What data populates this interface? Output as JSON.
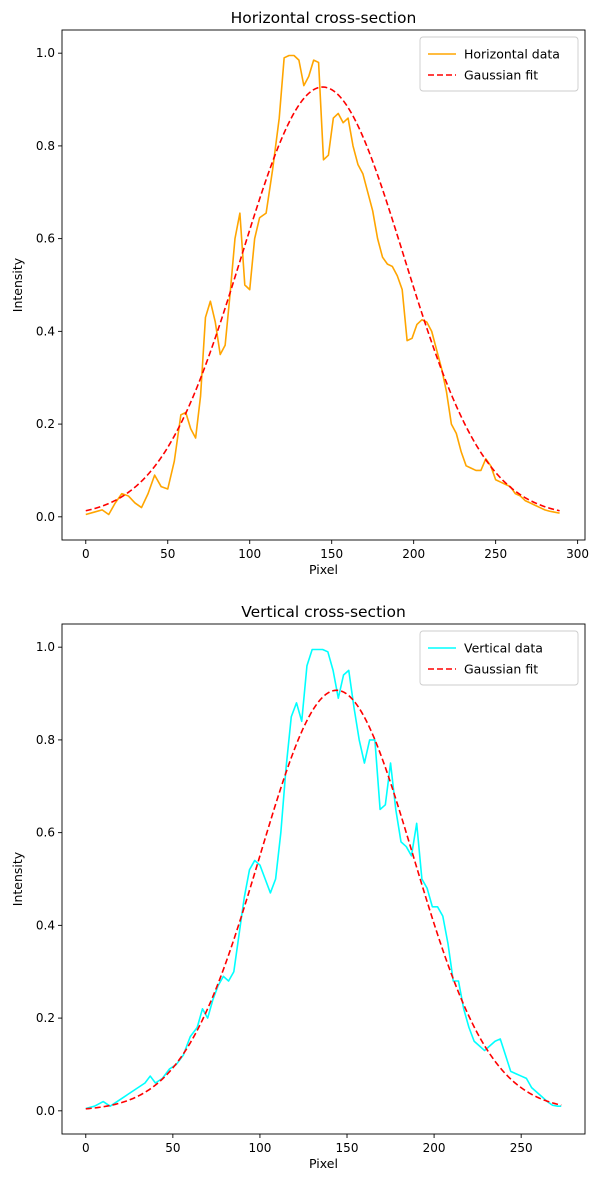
{
  "chart_data": [
    {
      "type": "line",
      "title": "Horizontal cross-section",
      "xlabel": "Pixel",
      "ylabel": "Intensity",
      "xlim": [
        -14.5,
        304.5
      ],
      "ylim": [
        -0.05,
        1.05
      ],
      "xticks": [
        0,
        50,
        100,
        150,
        200,
        250,
        300
      ],
      "yticks": [
        0.0,
        0.2,
        0.4,
        0.6,
        0.8,
        1.0
      ],
      "xtick_labels": [
        "0",
        "50",
        "100",
        "150",
        "200",
        "250",
        "300"
      ],
      "ytick_labels": [
        "0.0",
        "0.2",
        "0.4",
        "0.6",
        "0.8",
        "1.0"
      ],
      "grid": false,
      "legend_position": "top-right",
      "series": [
        {
          "name": "Horizontal data",
          "color": "#ffa500",
          "style": "solid",
          "x": [
            0,
            5,
            10,
            14,
            18,
            22,
            26,
            30,
            34,
            38,
            42,
            46,
            50,
            54,
            58,
            61,
            64,
            67,
            70,
            73,
            76,
            79,
            82,
            85,
            88,
            91,
            94,
            97,
            100,
            103,
            106,
            110,
            114,
            118,
            121,
            124,
            127,
            130,
            133,
            136,
            139,
            142,
            145,
            148,
            151,
            154,
            157,
            160,
            163,
            166,
            169,
            172,
            175,
            178,
            181,
            184,
            187,
            190,
            193,
            196,
            199,
            202,
            205,
            208,
            211,
            214,
            217,
            220,
            223,
            226,
            229,
            232,
            235,
            238,
            241,
            244,
            247,
            250,
            253,
            256,
            259,
            262,
            265,
            268,
            271,
            274,
            277,
            280,
            283,
            286,
            289
          ],
          "y": [
            0.005,
            0.01,
            0.015,
            0.005,
            0.03,
            0.05,
            0.045,
            0.03,
            0.02,
            0.05,
            0.09,
            0.065,
            0.06,
            0.12,
            0.22,
            0.225,
            0.19,
            0.17,
            0.26,
            0.43,
            0.465,
            0.42,
            0.35,
            0.37,
            0.48,
            0.6,
            0.655,
            0.5,
            0.49,
            0.6,
            0.645,
            0.655,
            0.75,
            0.86,
            0.99,
            0.995,
            0.995,
            0.985,
            0.93,
            0.95,
            0.985,
            0.98,
            0.77,
            0.78,
            0.86,
            0.87,
            0.85,
            0.86,
            0.8,
            0.76,
            0.74,
            0.7,
            0.66,
            0.6,
            0.56,
            0.545,
            0.54,
            0.52,
            0.49,
            0.38,
            0.385,
            0.415,
            0.425,
            0.42,
            0.4,
            0.36,
            0.32,
            0.27,
            0.2,
            0.18,
            0.14,
            0.11,
            0.105,
            0.1,
            0.1,
            0.125,
            0.11,
            0.08,
            0.075,
            0.07,
            0.065,
            0.05,
            0.045,
            0.035,
            0.03,
            0.025,
            0.02,
            0.015,
            0.012,
            0.01,
            0.008
          ]
        },
        {
          "name": "Gaussian fit",
          "color": "#ff0000",
          "style": "dashed",
          "fit": {
            "amplitude": 0.927,
            "center": 144.5,
            "sigma": 49.5,
            "x_start": 0,
            "x_end": 289
          }
        }
      ]
    },
    {
      "type": "line",
      "title": "Vertical cross-section",
      "xlabel": "Pixel",
      "ylabel": "Intensity",
      "xlim": [
        -13.65,
        286.65
      ],
      "ylim": [
        -0.05,
        1.05
      ],
      "xticks": [
        0,
        50,
        100,
        150,
        200,
        250
      ],
      "yticks": [
        0.0,
        0.2,
        0.4,
        0.6,
        0.8,
        1.0
      ],
      "xtick_labels": [
        "0",
        "50",
        "100",
        "150",
        "200",
        "250"
      ],
      "ytick_labels": [
        "0.0",
        "0.2",
        "0.4",
        "0.6",
        "0.8",
        "1.0"
      ],
      "grid": false,
      "legend_position": "top-right",
      "series": [
        {
          "name": "Vertical data",
          "color": "#00ffff",
          "style": "solid",
          "x": [
            0,
            5,
            10,
            14,
            18,
            22,
            26,
            30,
            34,
            37,
            40,
            44,
            48,
            52,
            56,
            60,
            64,
            67,
            70,
            73,
            76,
            79,
            82,
            85,
            88,
            91,
            94,
            97,
            100,
            103,
            106,
            109,
            112,
            115,
            118,
            121,
            124,
            127,
            130,
            133,
            136,
            139,
            142,
            145,
            148,
            151,
            154,
            157,
            160,
            163,
            166,
            169,
            172,
            175,
            178,
            181,
            184,
            187,
            190,
            193,
            196,
            199,
            202,
            205,
            208,
            211,
            214,
            217,
            220,
            223,
            226,
            229,
            232,
            235,
            238,
            241,
            244,
            247,
            250,
            253,
            256,
            259,
            262,
            265,
            268,
            271,
            273
          ],
          "y": [
            0.005,
            0.01,
            0.02,
            0.01,
            0.02,
            0.03,
            0.04,
            0.05,
            0.06,
            0.075,
            0.06,
            0.07,
            0.09,
            0.1,
            0.12,
            0.16,
            0.18,
            0.22,
            0.2,
            0.24,
            0.27,
            0.29,
            0.28,
            0.3,
            0.38,
            0.46,
            0.52,
            0.54,
            0.53,
            0.5,
            0.47,
            0.5,
            0.6,
            0.74,
            0.85,
            0.88,
            0.84,
            0.96,
            0.995,
            0.995,
            0.995,
            0.99,
            0.95,
            0.89,
            0.94,
            0.95,
            0.87,
            0.8,
            0.75,
            0.8,
            0.8,
            0.65,
            0.66,
            0.75,
            0.65,
            0.58,
            0.57,
            0.55,
            0.62,
            0.5,
            0.48,
            0.44,
            0.44,
            0.42,
            0.36,
            0.28,
            0.28,
            0.22,
            0.18,
            0.15,
            0.14,
            0.13,
            0.14,
            0.15,
            0.155,
            0.12,
            0.085,
            0.08,
            0.075,
            0.07,
            0.05,
            0.04,
            0.03,
            0.02,
            0.012,
            0.01,
            0.01
          ]
        },
        {
          "name": "Gaussian fit",
          "color": "#ff0000",
          "style": "dashed",
          "fit": {
            "amplitude": 0.907,
            "center": 144.0,
            "sigma": 44.0,
            "x_start": 0,
            "x_end": 273
          }
        }
      ]
    }
  ]
}
